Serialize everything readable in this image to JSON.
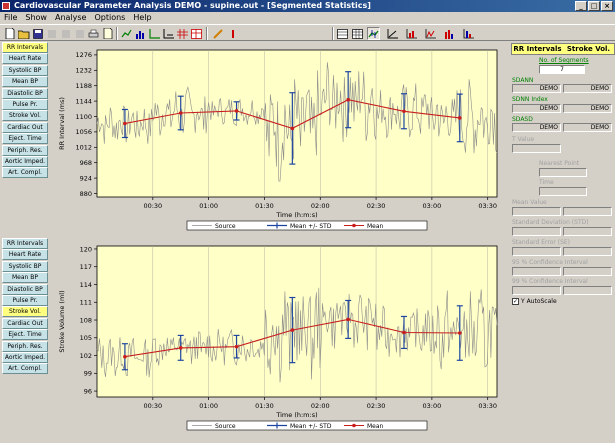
{
  "window": {
    "title": "Cardiovascular Parameter Analysis DEMO - supine.out - [Segmented Statistics]",
    "minimize": "_",
    "maximize": "□",
    "close": "×"
  },
  "menu": [
    "File",
    "Show",
    "Analyse",
    "Options",
    "Help"
  ],
  "colors": {
    "nav_active": "#ffff80",
    "nav_button": "#c7e2e6",
    "plot_bg": "#ffffc8",
    "series_line": "#8c8c8c",
    "mean_line": "#c81e1e",
    "error_bar": "#1e46a0",
    "green_label": "#008000"
  },
  "nav_top": {
    "active": "RR Intervals",
    "items": [
      "RR Intervals",
      "Heart Rate",
      "Systolic BP",
      "Mean BP",
      "Diastolic BP",
      "Pulse Pr.",
      "Stroke Vol.",
      "Cardiac Out",
      "Eject. Time",
      "Periph. Res.",
      "Aortic Imped.",
      "Art. Compl."
    ]
  },
  "nav_bottom": {
    "active": "Stroke Vol.",
    "items": [
      "RR Intervals",
      "Heart Rate",
      "Systolic BP",
      "Mean BP",
      "Diastolic BP",
      "Pulse Pr.",
      "Stroke Vol.",
      "Cardiac Out",
      "Eject. Time",
      "Periph. Res.",
      "Aortic Imped.",
      "Art. Compl."
    ]
  },
  "legend": {
    "source": "Source",
    "meanstd": "Mean +/- STD",
    "mean": "Mean"
  },
  "right_panel": {
    "header_left": "RR Intervals",
    "header_right": "Stroke Vol.",
    "segments_label": "No. of Segments",
    "segments_value": "7",
    "sdann_label": "SDANN",
    "sdann_left": "DEMO",
    "sdann_right": "DEMO",
    "sdnn_label": "SDNN Index",
    "sdnn_left": "DEMO",
    "sdnn_right": "DEMO",
    "sdasd_label": "SDASD",
    "sdasd_left": "DEMO",
    "sdasd_right": "DEMO",
    "tvalue_label": "T Value",
    "nearest_label": "Nearest Point",
    "time_label": "Time",
    "mean_value_label": "Mean Value",
    "sd_label": "Standard Deviation (STD)",
    "se_label": "Standard Error (SE)",
    "ci95_label": "95 % Confidence Interval",
    "ci99_label": "99 % Confidence Interval",
    "autoscale_label": "Y AutoScale",
    "autoscale_checked": "✓"
  },
  "chart_data": [
    {
      "type": "line",
      "ylabel": "RR Interval (ms)",
      "xlabel": "Time (h:m:s)",
      "yticks": [
        880,
        924,
        968,
        1012,
        1056,
        1100,
        1144,
        1188,
        1232,
        1276
      ],
      "ylim": [
        870,
        1290
      ],
      "xticks": [
        "00:30",
        "01:00",
        "01:30",
        "02:00",
        "02:30",
        "03:00",
        "03:30"
      ],
      "xtick_seconds": [
        1800,
        3600,
        5400,
        7200,
        9000,
        10800,
        12600
      ],
      "xlim": [
        0,
        12900
      ],
      "series": [
        {
          "name": "Mean",
          "x": [
            900,
            2700,
            4500,
            6300,
            8100,
            9900,
            11700
          ],
          "values": [
            1080,
            1110,
            1116,
            1066,
            1148,
            1115,
            1096
          ],
          "std": [
            40,
            48,
            26,
            102,
            80,
            50,
            68
          ]
        }
      ]
    },
    {
      "type": "line",
      "ylabel": "Stroke Volume (ml)",
      "xlabel": "Time (h:m:s)",
      "yticks": [
        96,
        99,
        102,
        105,
        108,
        111,
        114,
        117,
        120
      ],
      "ylim": [
        95,
        120.5
      ],
      "xticks": [
        "00:30",
        "01:00",
        "01:30",
        "02:00",
        "02:30",
        "03:00",
        "03:30"
      ],
      "xtick_seconds": [
        1800,
        3600,
        5400,
        7200,
        9000,
        10800,
        12600
      ],
      "xlim": [
        0,
        12900
      ],
      "series": [
        {
          "name": "Mean",
          "x": [
            900,
            2700,
            4500,
            6300,
            8100,
            9900,
            11700
          ],
          "values": [
            101.8,
            103.3,
            103.5,
            106.3,
            108.1,
            105.9,
            105.8
          ],
          "std": [
            2.2,
            2.1,
            1.9,
            5.5,
            3.2,
            2.7,
            4.6
          ]
        }
      ]
    }
  ]
}
